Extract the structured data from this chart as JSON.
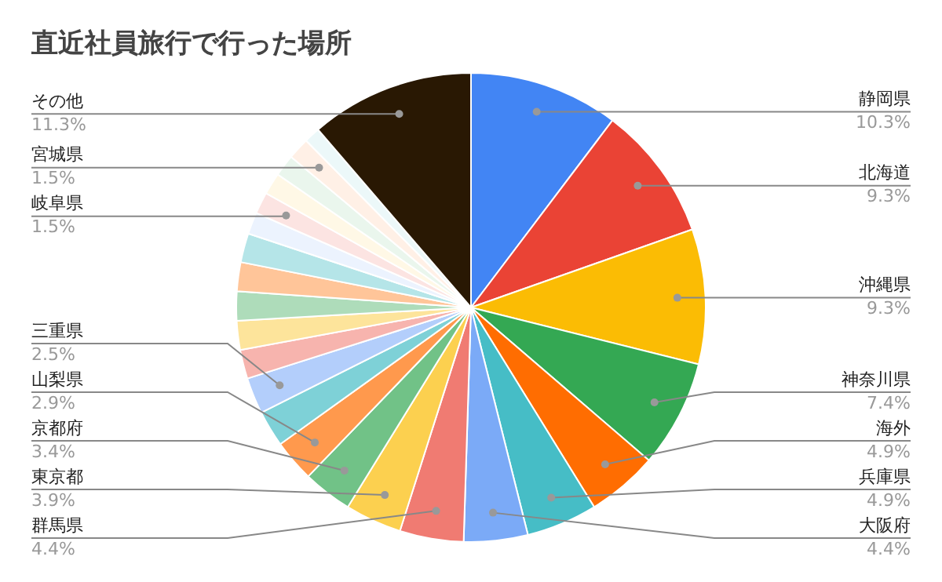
{
  "chart_data": {
    "type": "pie",
    "title": "直近社員旅行で行った場所",
    "categories": [
      "静岡県",
      "北海道",
      "沖縄県",
      "神奈川県",
      "海外",
      "兵庫県",
      "大阪府",
      "群馬県",
      "東京都",
      "京都府",
      "山梨県",
      null,
      "三重県",
      null,
      null,
      null,
      null,
      null,
      null,
      "岐阜県",
      null,
      null,
      "宮城県",
      null,
      "その他"
    ],
    "values": [
      10.3,
      9.3,
      9.3,
      7.4,
      4.9,
      4.9,
      4.4,
      4.4,
      3.9,
      3.4,
      2.9,
      2.5,
      2.5,
      2.0,
      2.0,
      2.0,
      2.0,
      2.0,
      1.5,
      1.5,
      1.5,
      1.5,
      1.5,
      1.1,
      11.3
    ],
    "value_labels": [
      "10.3%",
      "9.3%",
      "9.3%",
      "7.4%",
      "4.9%",
      "4.9%",
      "4.4%",
      "4.4%",
      "3.9%",
      "3.4%",
      "2.9%",
      null,
      "2.5%",
      null,
      null,
      null,
      null,
      null,
      null,
      "1.5%",
      null,
      null,
      "1.5%",
      null,
      "11.3%"
    ],
    "colors": [
      "#4285f4",
      "#ea4335",
      "#fbbc04",
      "#34a853",
      "#ff6d01",
      "#46bdc6",
      "#7baaf7",
      "#f07b72",
      "#fcd04f",
      "#71c287",
      "#ff994d",
      "#7ed1d7",
      "#b3cefb",
      "#f7b4ae",
      "#fde49b",
      "#aedcba",
      "#ffc599",
      "#b5e5e8",
      "#ecf3fe",
      "#fce4e2",
      "#fff8e6",
      "#eaf6ed",
      "#fff0e6",
      "#ecf8f9",
      "#291803"
    ]
  }
}
